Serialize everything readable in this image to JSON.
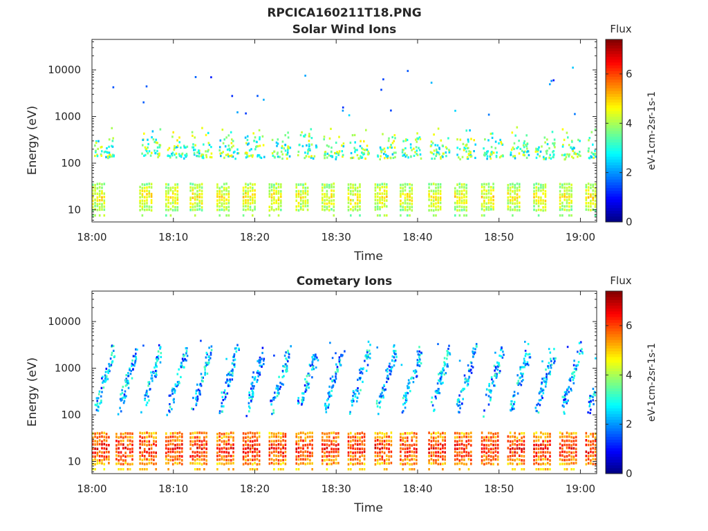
{
  "figure": {
    "title": "RPCICA160211T18.PNG"
  },
  "chart_data": [
    {
      "type": "heatmap",
      "title": "Solar Wind Ions",
      "xlabel": "Time",
      "ylabel": "Energy (eV)",
      "yscale": "log",
      "xlim": [
        "18:00",
        "19:02"
      ],
      "ylim": [
        5.5,
        45000
      ],
      "xticks": [
        "18:00",
        "18:10",
        "18:20",
        "18:30",
        "18:40",
        "18:50",
        "19:00"
      ],
      "yticks": [
        10,
        100,
        1000,
        10000
      ],
      "ytick_labels": [
        "10",
        "100",
        "1000",
        "10000"
      ],
      "colorbar": {
        "title": "Flux",
        "label": "eV-1cm-2sr-1s-1",
        "range": [
          0,
          7.4
        ],
        "ticks": [
          "0",
          "2",
          "4",
          "6"
        ],
        "colormap": "jet"
      },
      "sweep_start_minutes": [
        0,
        5.8,
        9,
        12,
        15.3,
        18.5,
        21.7,
        25,
        28.2,
        31.4,
        34.7,
        37.8,
        41.3,
        44.5,
        47.8,
        51,
        54.2,
        57.4,
        60.6
      ],
      "bands": [
        {
          "energy_range": [
            10,
            35
          ],
          "flux_range": [
            3.3,
            5.2
          ],
          "description": "low energy sweep blocks"
        },
        {
          "energy_range": [
            120,
            600
          ],
          "flux_range": [
            2.2,
            4.8
          ],
          "description": "solar wind proton band"
        }
      ]
    },
    {
      "type": "heatmap",
      "title": "Cometary Ions",
      "xlabel": "Time",
      "ylabel": "Energy (eV)",
      "yscale": "log",
      "xlim": [
        "18:00",
        "19:02"
      ],
      "ylim": [
        5.5,
        45000
      ],
      "xticks": [
        "18:00",
        "18:10",
        "18:20",
        "18:30",
        "18:40",
        "18:50",
        "19:00"
      ],
      "yticks": [
        10,
        100,
        1000,
        10000
      ],
      "ytick_labels": [
        "10",
        "100",
        "1000",
        "10000"
      ],
      "colorbar": {
        "title": "Flux",
        "label": "eV-1cm-2sr-1s-1",
        "range": [
          0,
          7.4
        ],
        "ticks": [
          "0",
          "2",
          "4",
          "6"
        ],
        "colormap": "jet"
      },
      "sweep_start_minutes": [
        0,
        2.9,
        5.8,
        9,
        12,
        15.3,
        18.5,
        21.7,
        25,
        28.2,
        31.4,
        34.7,
        37.8,
        41.3,
        44.5,
        47.8,
        51,
        54.2,
        57.4,
        60.6
      ],
      "bands": [
        {
          "energy_range": [
            9,
            40
          ],
          "flux_range": [
            4.5,
            7.0
          ],
          "description": "intense cometary ion blocks"
        },
        {
          "energy_range": [
            80,
            2500
          ],
          "flux_range": [
            1.0,
            3.4
          ],
          "description": "rising sweep traces"
        }
      ]
    }
  ]
}
